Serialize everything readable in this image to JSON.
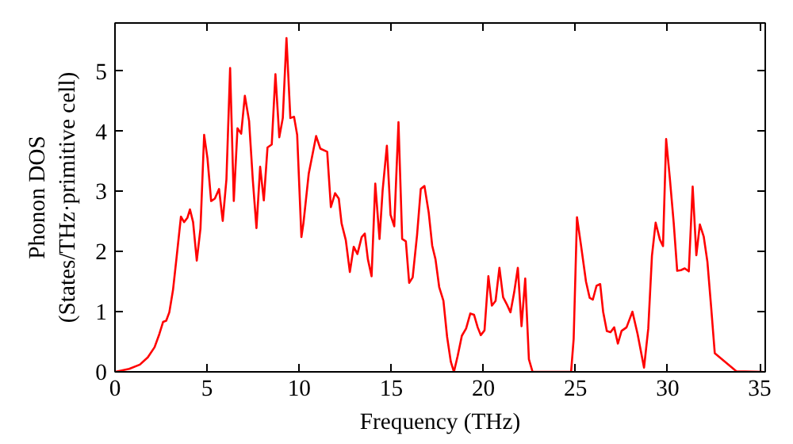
{
  "chart_data": {
    "type": "line",
    "xlabel": "Frequency (THz)",
    "ylabel": "Phonon DOS\n(States/THz·primitive cell)",
    "xlim": [
      0,
      35.3
    ],
    "ylim": [
      0,
      5.8
    ],
    "xticks": [
      0,
      5,
      10,
      15,
      20,
      25,
      30,
      35
    ],
    "yticks": [
      0,
      1,
      2,
      3,
      4,
      5
    ],
    "grid": false,
    "marker": "none",
    "line_style": "solid",
    "series": [
      {
        "color": "#ff0000",
        "x": [
          0,
          0.77,
          1.35,
          1.78,
          2.15,
          2.41,
          2.61,
          2.78,
          2.95,
          3.15,
          3.35,
          3.58,
          3.75,
          3.93,
          4.07,
          4.24,
          4.44,
          4.64,
          4.84,
          5.02,
          5.22,
          5.42,
          5.65,
          5.85,
          6.05,
          6.25,
          6.45,
          6.65,
          6.85,
          7.05,
          7.28,
          7.48,
          7.68,
          7.88,
          8.08,
          8.28,
          8.51,
          8.71,
          8.92,
          9.11,
          9.31,
          9.52,
          9.72,
          9.89,
          10.12,
          10.23,
          10.52,
          10.92,
          11.15,
          11.52,
          11.72,
          11.95,
          12.15,
          12.3,
          12.53,
          12.75,
          12.96,
          13.16,
          13.39,
          13.56,
          13.73,
          13.93,
          14.13,
          14.36,
          14.53,
          14.76,
          14.96,
          15.16,
          15.39,
          15.59,
          15.79,
          15.97,
          16.16,
          16.4,
          16.6,
          16.8,
          17.03,
          17.22,
          17.4,
          17.6,
          17.83,
          18.03,
          18.23,
          18.4,
          18.6,
          18.83,
          19.06,
          19.29,
          19.49,
          19.69,
          19.86,
          20.06,
          20.27,
          20.46,
          20.66,
          20.87,
          21.07,
          21.26,
          21.47,
          21.67,
          21.87,
          22.07,
          22.27,
          22.47,
          22.67,
          24.76,
          24.9,
          25.08,
          25.3,
          25.57,
          25.77,
          25.94,
          26.14,
          26.34,
          26.5,
          26.7,
          26.9,
          27.1,
          27.3,
          27.5,
          27.77,
          28.09,
          28.37,
          28.72,
          28.95,
          29.15,
          29.35,
          29.58,
          29.75,
          29.92,
          30.12,
          30.33,
          30.52,
          30.72,
          30.93,
          31.15,
          31.36,
          31.56,
          31.75,
          31.96,
          32.16,
          32.36,
          32.56,
          33.73,
          35.16
        ],
        "values": [
          0,
          0.05,
          0.12,
          0.24,
          0.41,
          0.63,
          0.83,
          0.85,
          0.99,
          1.36,
          1.92,
          2.58,
          2.49,
          2.56,
          2.7,
          2.49,
          1.85,
          2.38,
          3.94,
          3.55,
          2.84,
          2.88,
          3.04,
          2.51,
          3.2,
          5.05,
          2.84,
          4.05,
          3.96,
          4.59,
          4.17,
          3.2,
          2.39,
          3.41,
          2.85,
          3.73,
          3.78,
          4.95,
          3.9,
          4.22,
          5.55,
          4.22,
          4.24,
          3.94,
          2.24,
          2.47,
          3.3,
          3.92,
          3.71,
          3.66,
          2.74,
          2.97,
          2.88,
          2.47,
          2.19,
          1.66,
          2.08,
          1.96,
          2.24,
          2.3,
          1.87,
          1.59,
          3.13,
          2.21,
          3.02,
          3.76,
          2.61,
          2.42,
          4.15,
          2.21,
          2.17,
          1.48,
          1.57,
          2.28,
          3.04,
          3.09,
          2.65,
          2.1,
          1.87,
          1.41,
          1.18,
          0.58,
          0.17,
          0,
          0.26,
          0.6,
          0.72,
          0.97,
          0.95,
          0.74,
          0.61,
          0.69,
          1.59,
          1.1,
          1.18,
          1.73,
          1.24,
          1.13,
          0.99,
          1.32,
          1.73,
          0.76,
          1.55,
          0.21,
          0,
          0,
          0.55,
          2.57,
          2.1,
          1.5,
          1.23,
          1.2,
          1.43,
          1.46,
          1.0,
          0.68,
          0.66,
          0.74,
          0.47,
          0.68,
          0.74,
          1.0,
          0.63,
          0.07,
          0.72,
          1.93,
          2.48,
          2.2,
          2.09,
          3.87,
          3.22,
          2.48,
          1.68,
          1.69,
          1.72,
          1.67,
          3.08,
          1.94,
          2.45,
          2.25,
          1.83,
          1.09,
          0.31,
          0.01,
          0
        ]
      }
    ]
  }
}
